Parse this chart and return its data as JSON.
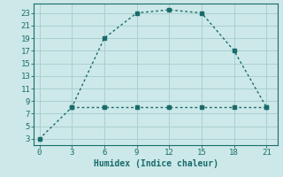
{
  "line1_x": [
    0,
    3,
    6,
    9,
    12,
    15,
    18,
    21
  ],
  "line1_y": [
    3,
    8,
    19,
    23,
    23.5,
    23,
    17,
    8
  ],
  "line2_x": [
    3,
    6,
    9,
    12,
    15,
    18,
    21
  ],
  "line2_y": [
    8,
    8,
    8,
    8,
    8,
    8,
    8
  ],
  "line_color": "#1a6b6b",
  "bg_color": "#cce8e8",
  "grid_color": "#aacfcf",
  "xlabel": "Humidex (Indice chaleur)",
  "xlim": [
    -0.5,
    22
  ],
  "ylim": [
    2,
    24.5
  ],
  "xticks": [
    0,
    3,
    6,
    9,
    12,
    15,
    18,
    21
  ],
  "yticks": [
    3,
    5,
    7,
    9,
    11,
    13,
    15,
    17,
    19,
    21,
    23
  ],
  "xlabel_fontsize": 7,
  "tick_fontsize": 6.5
}
